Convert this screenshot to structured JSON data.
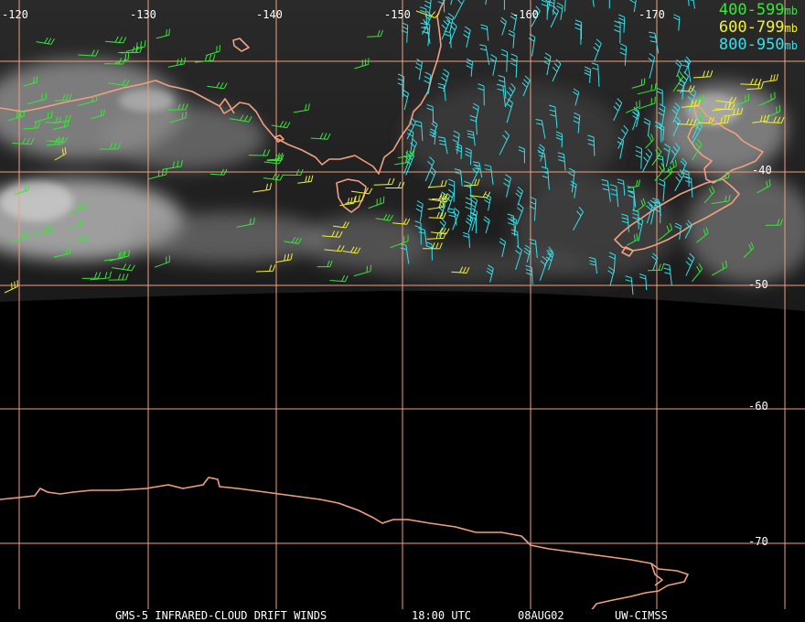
{
  "lon_labels": [
    "-120",
    "-130",
    "-140",
    "-150",
    "-160",
    "-170"
  ],
  "lat_labels": [
    "-40",
    "-50",
    "-60",
    "-70"
  ],
  "legend": [
    {
      "text": "400-599",
      "unit": "mb",
      "color": "#39e639"
    },
    {
      "text": "600-799",
      "unit": "mb",
      "color": "#f2f230"
    },
    {
      "text": "800-950",
      "unit": "mb",
      "color": "#38dfe8"
    }
  ],
  "footer": {
    "product": "GMS-5 INFRARED-CLOUD DRIFT WINDS",
    "time": "18:00 UTC",
    "date": "08AUG02",
    "source": "UW-CIMSS"
  },
  "colors": {
    "grid": "#f0a080",
    "coast": "#f0a080",
    "background": "#000000"
  }
}
